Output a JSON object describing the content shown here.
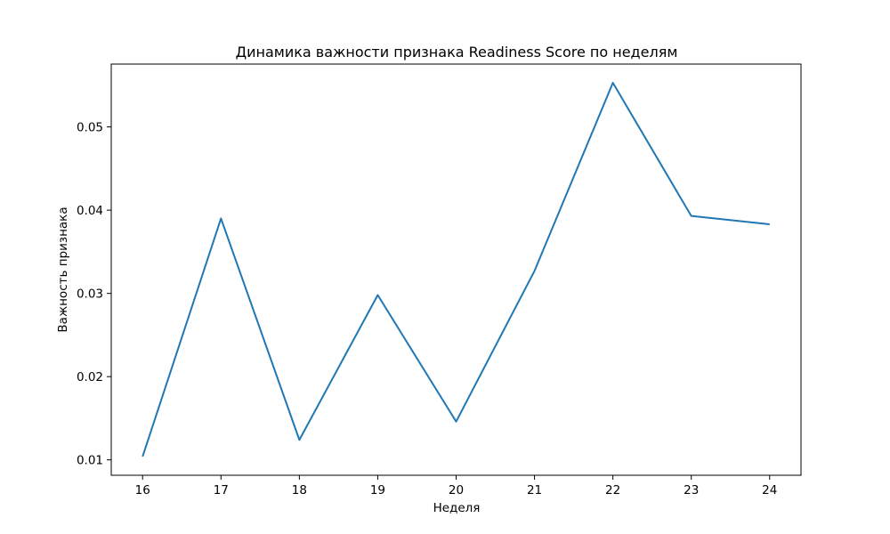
{
  "chart_data": {
    "type": "line",
    "title": "Динамика важности признака Readiness Score по неделям",
    "xlabel": "Неделя",
    "ylabel": "Важность признака",
    "x": [
      16,
      17,
      18,
      19,
      20,
      21,
      22,
      23,
      24
    ],
    "series": [
      {
        "values": [
          0.0104,
          0.039,
          0.0124,
          0.0298,
          0.0146,
          0.0327,
          0.0553,
          0.0393,
          0.0383
        ],
        "color": "#1f77b4"
      }
    ],
    "xticks": [
      "16",
      "17",
      "18",
      "19",
      "20",
      "21",
      "22",
      "23",
      "24"
    ],
    "yticks": [
      "0.01",
      "0.02",
      "0.03",
      "0.04",
      "0.05"
    ],
    "ylim": [
      0.00815,
      0.05755
    ],
    "xlim": [
      15.6,
      24.4
    ],
    "grid": false,
    "legend": false
  }
}
